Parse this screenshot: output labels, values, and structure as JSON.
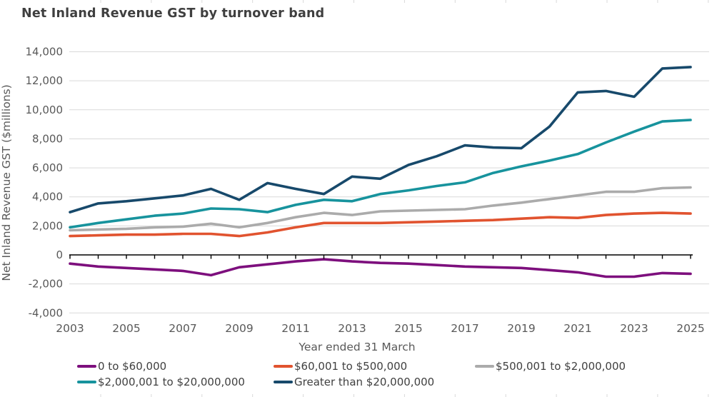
{
  "title": "Net Inland Revenue GST by turnover band",
  "colors": {
    "title_text": "#3F3F3F",
    "axis_text": "#595959",
    "gridline": "#D9D9D9",
    "frame_tick": "#D9D9D9",
    "zero_axis_line": "#000000",
    "background": "#FFFFFF"
  },
  "chart_data": {
    "type": "line",
    "title": "Net Inland Revenue GST by turnover band",
    "xlabel": "Year ended 31 March",
    "ylabel": "Net Inland Revenue GST ($millions)",
    "x": [
      2003,
      2004,
      2005,
      2006,
      2007,
      2008,
      2009,
      2010,
      2011,
      2012,
      2013,
      2014,
      2015,
      2016,
      2017,
      2018,
      2019,
      2020,
      2021,
      2022,
      2023,
      2024,
      2025
    ],
    "x_tick_years": [
      2003,
      2005,
      2007,
      2009,
      2011,
      2013,
      2015,
      2017,
      2019,
      2021,
      2023,
      2025
    ],
    "y_ticks": [
      -4000,
      -2000,
      0,
      2000,
      4000,
      6000,
      8000,
      10000,
      12000,
      14000
    ],
    "ylim": [
      -4000,
      14000
    ],
    "grid": "horizontal",
    "legend_position": "bottom",
    "series": [
      {
        "name": "0 to $60,000",
        "color": "#7D0F7D",
        "values": [
          -600,
          -800,
          -900,
          -1000,
          -1100,
          -1400,
          -850,
          -650,
          -450,
          -300,
          -450,
          -550,
          -600,
          -700,
          -800,
          -850,
          -900,
          -1050,
          -1200,
          -1500,
          -1500,
          -1250,
          -1300
        ]
      },
      {
        "name": "$60,001 to $500,000",
        "color": "#E1532F",
        "values": [
          1300,
          1350,
          1400,
          1400,
          1450,
          1450,
          1300,
          1550,
          1900,
          2200,
          2200,
          2200,
          2250,
          2300,
          2350,
          2400,
          2500,
          2600,
          2550,
          2750,
          2850,
          2900,
          2850
        ]
      },
      {
        "name": "$500,001 to $2,000,000",
        "color": "#ABABAB",
        "values": [
          1700,
          1750,
          1800,
          1900,
          1950,
          2150,
          1900,
          2200,
          2600,
          2900,
          2750,
          3000,
          3050,
          3100,
          3150,
          3400,
          3600,
          3850,
          4100,
          4350,
          4350,
          4600,
          4650
        ]
      },
      {
        "name": "$2,000,001 to $20,000,000",
        "color": "#17939D",
        "values": [
          1900,
          2200,
          2450,
          2700,
          2850,
          3200,
          3150,
          2950,
          3450,
          3800,
          3700,
          4200,
          4450,
          4750,
          5000,
          5650,
          6100,
          6500,
          6950,
          7750,
          8500,
          9200,
          9300
        ]
      },
      {
        "name": "Greater than $20,000,000",
        "color": "#17496B",
        "values": [
          2950,
          3550,
          3700,
          3900,
          4100,
          4550,
          3800,
          4950,
          4550,
          4200,
          5400,
          5250,
          6200,
          6800,
          7550,
          7400,
          7350,
          8850,
          11200,
          11300,
          10900,
          12850,
          12950
        ]
      }
    ]
  }
}
